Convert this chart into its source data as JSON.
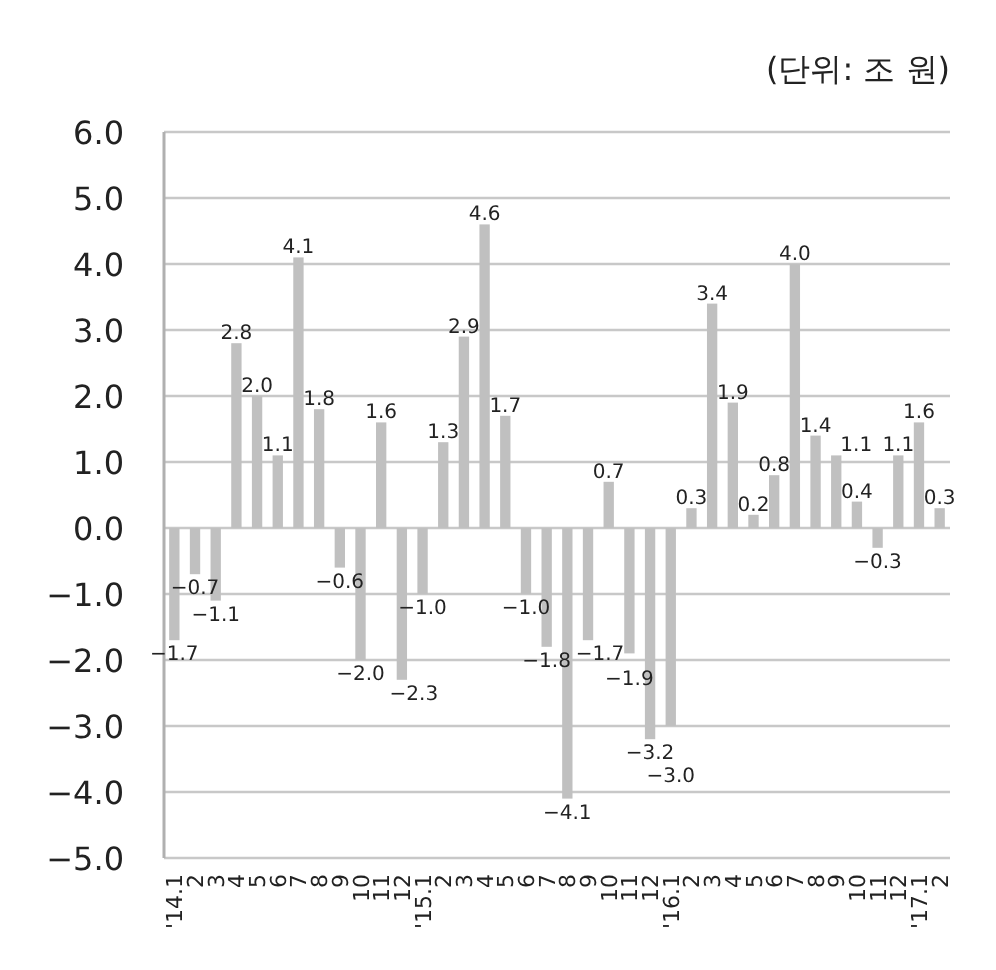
{
  "chart_data": {
    "type": "bar",
    "annotations": [
      "(단위: 조 원)"
    ],
    "categories": [
      "'14.1",
      "2",
      "3",
      "4",
      "5",
      "6",
      "7",
      "8",
      "9",
      "10",
      "11",
      "12",
      "'15.1",
      "2",
      "3",
      "4",
      "5",
      "6",
      "7",
      "8",
      "9",
      "10",
      "11",
      "12",
      "'16.1",
      "2",
      "3",
      "4",
      "5",
      "6",
      "7",
      "8",
      "9",
      "10",
      "11",
      "12",
      "'17.1",
      "2"
    ],
    "values": [
      -1.7,
      -0.7,
      -1.1,
      2.8,
      2.0,
      1.1,
      4.1,
      1.8,
      -0.6,
      -2.0,
      1.6,
      -2.3,
      -1.0,
      1.3,
      2.9,
      4.6,
      1.7,
      -1.0,
      -1.8,
      -4.1,
      -1.7,
      0.7,
      -1.9,
      -3.2,
      -3.0,
      0.3,
      3.4,
      1.9,
      0.2,
      0.8,
      4.0,
      1.4,
      1.1,
      0.4,
      -0.3,
      1.1,
      1.6,
      0.3
    ],
    "value_labels": [
      "−1.7",
      "−0.7",
      "−1.1",
      "2.8",
      "2.0",
      "1.1",
      "4.1",
      "1.8",
      "−0.6",
      "−2.0",
      "1.6",
      "−2.3",
      "−1.0",
      "1.3",
      "2.9",
      "4.6",
      "1.7",
      "−1.0",
      "−1.8",
      "−4.1",
      "−1.7",
      "0.7",
      "−1.9",
      "−3.2",
      "−3.0",
      "0.3",
      "3.4",
      "1.9",
      "0.2",
      "0.8",
      "4.0",
      "1.4",
      "1.1",
      "0.4",
      "−0.3",
      "1.1",
      "1.6",
      "0.3"
    ],
    "color": "#c0c0c0",
    "ylim": [
      -5,
      6
    ],
    "yticks": [
      {
        "value": -5,
        "label": "−5.0"
      },
      {
        "value": -4,
        "label": "−4.0"
      },
      {
        "value": -3,
        "label": "−3.0"
      },
      {
        "value": -2,
        "label": "−2.0"
      },
      {
        "value": -1,
        "label": "−1.0"
      },
      {
        "value": 0,
        "label": "0.0"
      },
      {
        "value": 1,
        "label": "1.0"
      },
      {
        "value": 2,
        "label": "2.0"
      },
      {
        "value": 3,
        "label": "3.0"
      },
      {
        "value": 4,
        "label": "4.0"
      },
      {
        "value": 5,
        "label": "5.0"
      },
      {
        "value": 6,
        "label": "6.0"
      }
    ],
    "grid": "y"
  }
}
